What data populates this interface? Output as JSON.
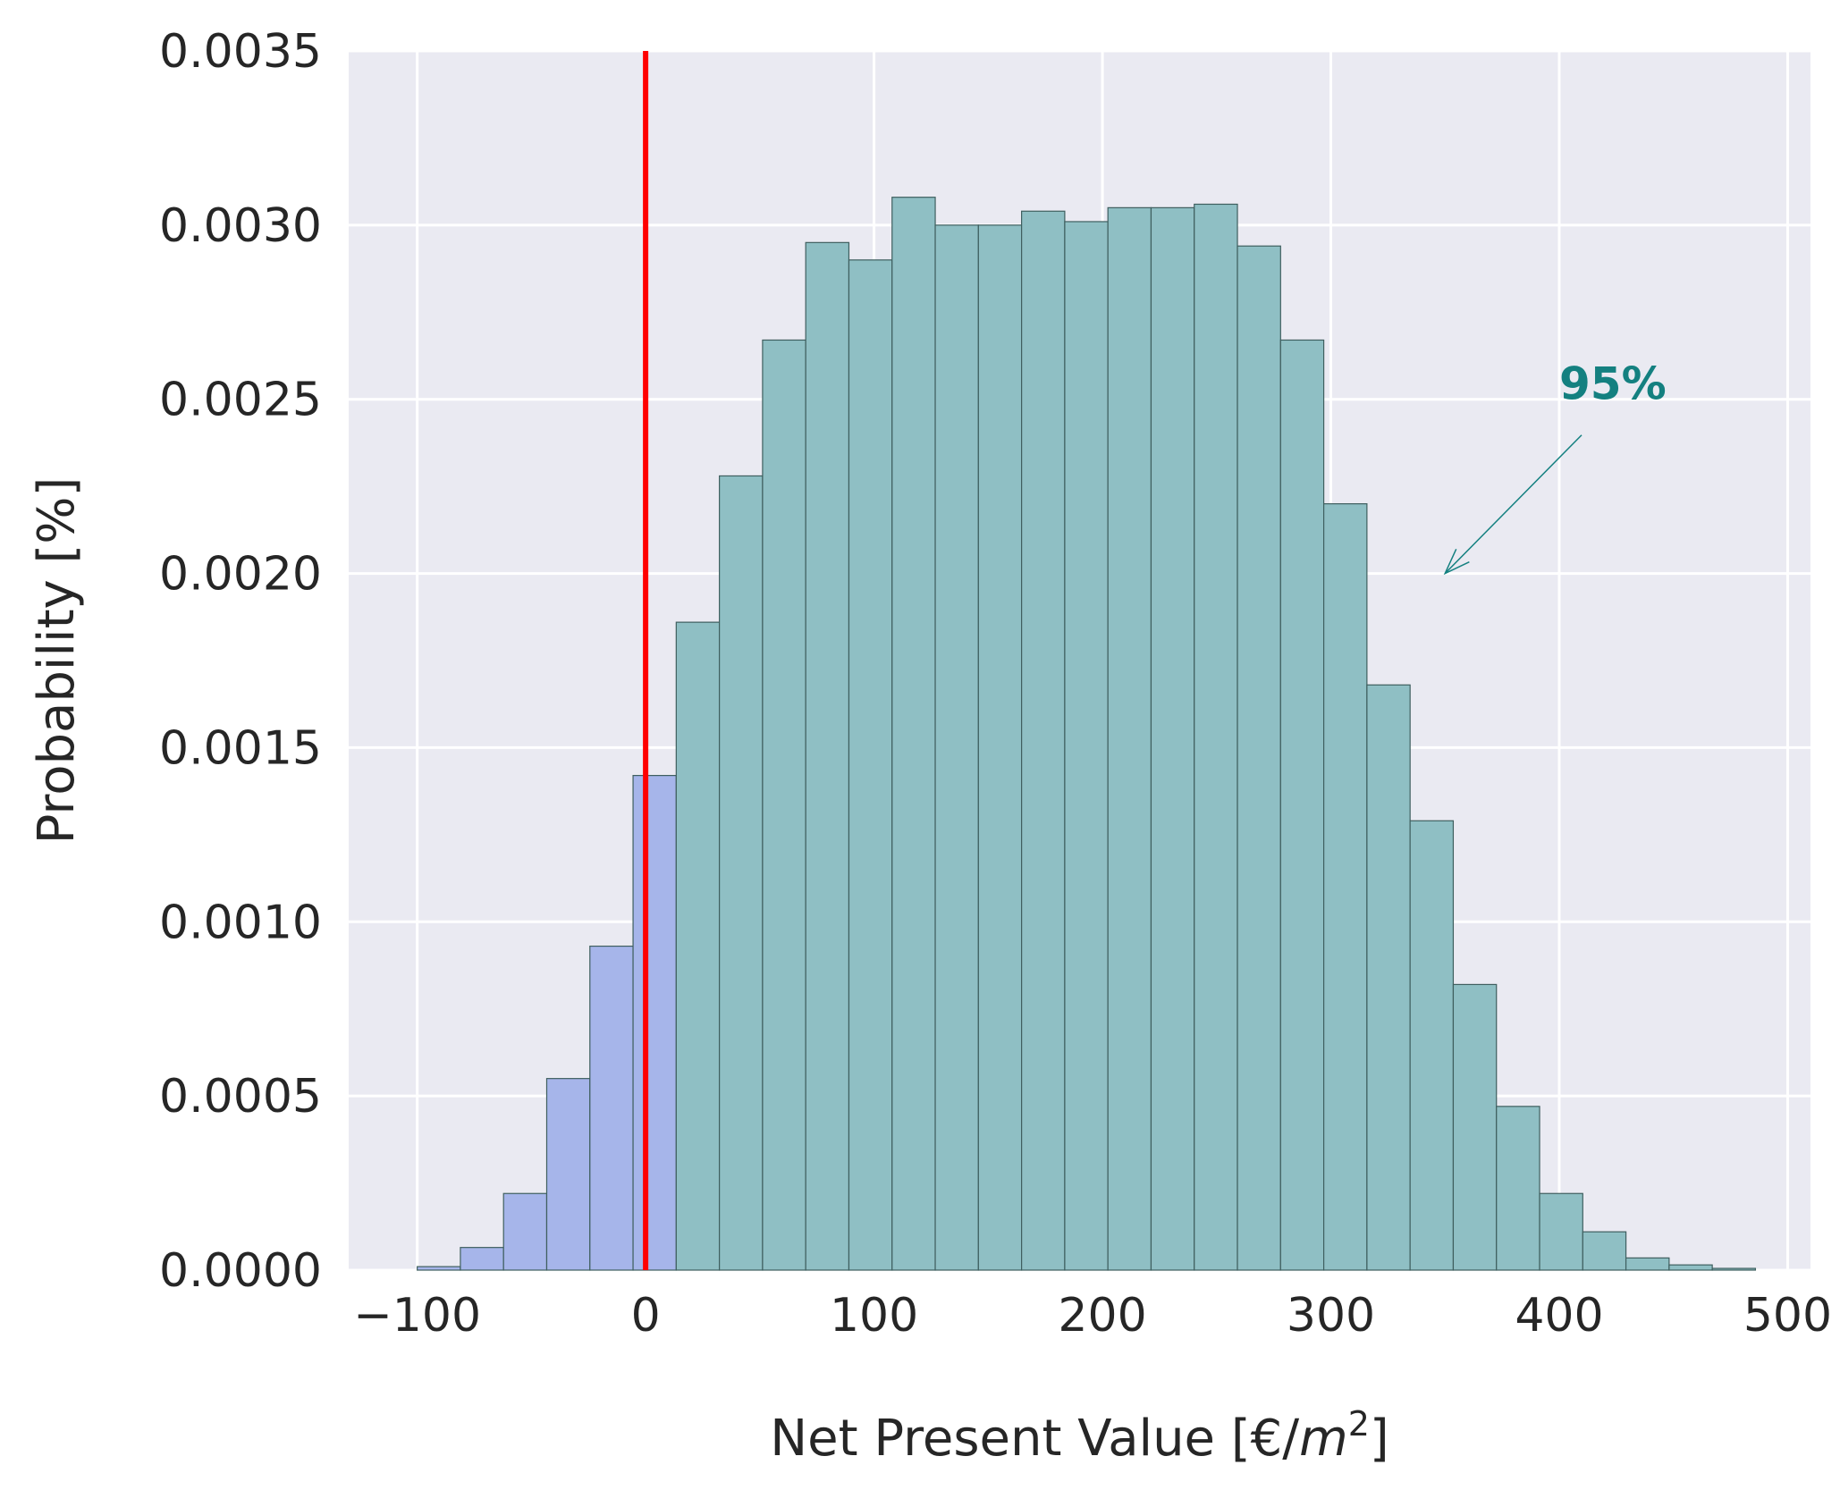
{
  "chart_data": {
    "type": "bar",
    "title": "",
    "xlabel_main": "Net Present Value [€/",
    "xlabel_var": "m",
    "xlabel_sup": "2",
    "xlabel_close": "]",
    "ylabel": "Probability [%]",
    "xlim": [
      -130,
      510
    ],
    "ylim": [
      0,
      0.0035
    ],
    "xticks": [
      -100,
      0,
      100,
      200,
      300,
      400,
      500
    ],
    "xtick_labels": [
      "−100",
      "0",
      "100",
      "200",
      "300",
      "400",
      "500"
    ],
    "yticks": [
      0,
      0.0005,
      0.001,
      0.0015,
      0.002,
      0.0025,
      0.003,
      0.0035
    ],
    "ytick_labels": [
      "0.0000",
      "0.0005",
      "0.0010",
      "0.0015",
      "0.0020",
      "0.0025",
      "0.0030",
      "0.0035"
    ],
    "grid": true,
    "background": "#eaeaf2",
    "bin_start": -100,
    "bin_width": 18.9,
    "values": [
      1e-05,
      6.5e-05,
      0.00022,
      0.00055,
      0.00093,
      0.00142,
      0.00186,
      0.00228,
      0.00267,
      0.00295,
      0.0029,
      0.00308,
      0.003,
      0.003,
      0.00304,
      0.00301,
      0.00305,
      0.00305,
      0.00306,
      0.00294,
      0.00267,
      0.0022,
      0.00168,
      0.00129,
      0.00082,
      0.00047,
      0.00022,
      0.00011,
      3.5e-05,
      1.5e-05,
      5e-06
    ],
    "negative_bins_count": 6,
    "color_negative": "#a6b5ea",
    "color_positive": "#8fbfc4",
    "edge_color": "#3f5f5f",
    "vline_x": 0,
    "vline_color": "#ff0000",
    "annotation": {
      "text": "95%",
      "color": "#148080",
      "text_x": 400,
      "text_y": 0.0025,
      "arrow_tip_x": 350,
      "arrow_tip_y": 0.002
    }
  }
}
